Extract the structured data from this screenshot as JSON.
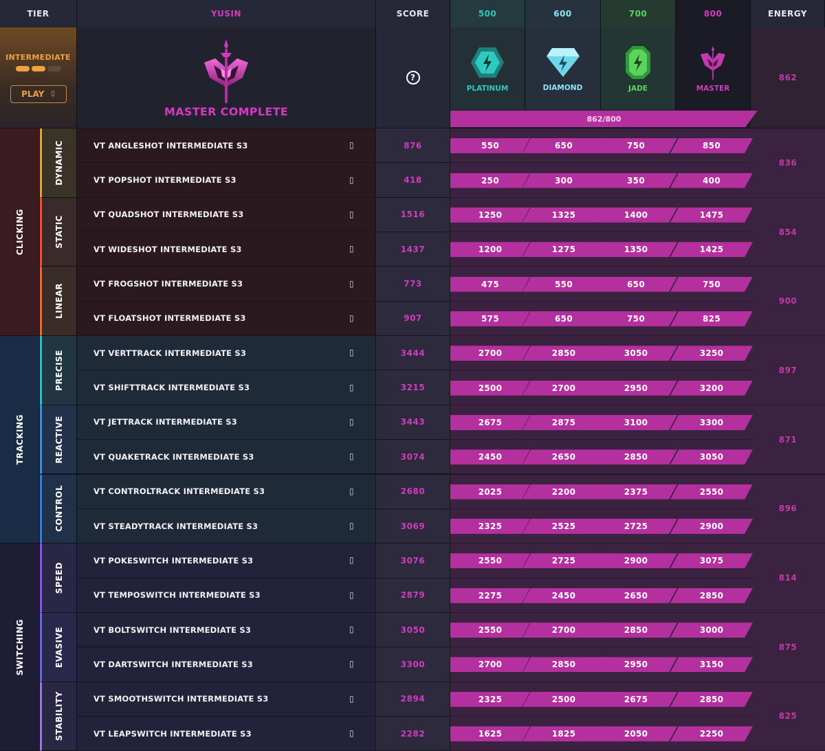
{
  "header": {
    "tier": "TIER",
    "player": "YUSIN",
    "score": "SCORE",
    "rank_columns": [
      "500",
      "600",
      "700",
      "800"
    ],
    "energy": "ENERGY"
  },
  "tier_panel": {
    "label": "INTERMEDIATE",
    "progress_filled": 2,
    "progress_total": 3,
    "play_label": "PLAY",
    "play_icon": "▯"
  },
  "profile": {
    "status": "MASTER COMPLETE"
  },
  "score_help": "?",
  "ranks": [
    {
      "name": "PLATINUM",
      "icon": "platinum-icon",
      "color": "#2fc9bf"
    },
    {
      "name": "DIAMOND",
      "icon": "diamond-icon",
      "color": "#8fe6f5"
    },
    {
      "name": "JADE",
      "icon": "jade-icon",
      "color": "#5cd35c"
    },
    {
      "name": "MASTER",
      "icon": "master-icon",
      "color": "#d23bc0"
    }
  ],
  "energy_total": "862",
  "progress_bar": {
    "text": "862/800",
    "fraction": 1.0
  },
  "categories": [
    {
      "name": "CLICKING",
      "bg": "#3b1b22",
      "text_bg": "#2a1a1f",
      "subcategories": [
        {
          "name": "DYNAMIC",
          "accent": "#d9a441",
          "bg": "#3a3328",
          "energy": "836",
          "scenarios": [
            {
              "name": "VT ANGLESHOT INTERMEDIATE S3",
              "score": "876",
              "thresholds": [
                "550",
                "650",
                "750",
                "850"
              ]
            },
            {
              "name": "VT POPSHOT INTERMEDIATE S3",
              "score": "418",
              "thresholds": [
                "250",
                "300",
                "350",
                "400"
              ]
            }
          ]
        },
        {
          "name": "STATIC",
          "accent": "#e0563f",
          "bg": "#3a2a29",
          "energy": "854",
          "scenarios": [
            {
              "name": "VT QUADSHOT INTERMEDIATE S3",
              "score": "1516",
              "thresholds": [
                "1250",
                "1325",
                "1400",
                "1475"
              ]
            },
            {
              "name": "VT WIDESHOT INTERMEDIATE S3",
              "score": "1437",
              "thresholds": [
                "1200",
                "1275",
                "1350",
                "1425"
              ]
            }
          ]
        },
        {
          "name": "LINEAR",
          "accent": "#e0703a",
          "bg": "#3a2c27",
          "energy": "900",
          "scenarios": [
            {
              "name": "VT FROGSHOT INTERMEDIATE S3",
              "score": "773",
              "thresholds": [
                "475",
                "550",
                "650",
                "750"
              ]
            },
            {
              "name": "VT FLOATSHOT INTERMEDIATE S3",
              "score": "907",
              "thresholds": [
                "575",
                "650",
                "750",
                "825"
              ]
            }
          ]
        }
      ]
    },
    {
      "name": "TRACKING",
      "bg": "#1b2d46",
      "text_bg": "#1f2a38",
      "subcategories": [
        {
          "name": "PRECISE",
          "accent": "#39b9c4",
          "bg": "#223543",
          "energy": "897",
          "scenarios": [
            {
              "name": "VT VERTTRACK INTERMEDIATE S3",
              "score": "3444",
              "thresholds": [
                "2700",
                "2850",
                "3050",
                "3250"
              ]
            },
            {
              "name": "VT SHIFTTRACK INTERMEDIATE S3",
              "score": "3215",
              "thresholds": [
                "2500",
                "2700",
                "2950",
                "3200"
              ]
            }
          ]
        },
        {
          "name": "REACTIVE",
          "accent": "#4a8bd6",
          "bg": "#22324a",
          "energy": "871",
          "scenarios": [
            {
              "name": "VT JETTRACK INTERMEDIATE S3",
              "score": "3443",
              "thresholds": [
                "2675",
                "2875",
                "3100",
                "3300"
              ]
            },
            {
              "name": "VT QUAKETRACK INTERMEDIATE S3",
              "score": "3074",
              "thresholds": [
                "2450",
                "2650",
                "2850",
                "3050"
              ]
            }
          ]
        },
        {
          "name": "CONTROL",
          "accent": "#3f7bd0",
          "bg": "#21314a",
          "energy": "896",
          "scenarios": [
            {
              "name": "VT CONTROLTRACK INTERMEDIATE S3",
              "score": "2680",
              "thresholds": [
                "2025",
                "2200",
                "2375",
                "2550"
              ]
            },
            {
              "name": "VT STEADYTRACK INTERMEDIATE S3",
              "score": "3069",
              "thresholds": [
                "2325",
                "2525",
                "2725",
                "2900"
              ]
            }
          ]
        }
      ]
    },
    {
      "name": "SWITCHING",
      "bg": "#1f1d36",
      "text_bg": "#23223a",
      "subcategories": [
        {
          "name": "SPEED",
          "accent": "#8a5ad6",
          "bg": "#2a2645",
          "energy": "814",
          "scenarios": [
            {
              "name": "VT POKESWITCH INTERMEDIATE S3",
              "score": "3076",
              "thresholds": [
                "2550",
                "2725",
                "2900",
                "3075"
              ]
            },
            {
              "name": "VT TEMPOSWITCH INTERMEDIATE S3",
              "score": "2879",
              "thresholds": [
                "2275",
                "2450",
                "2650",
                "2850"
              ]
            }
          ]
        },
        {
          "name": "EVASIVE",
          "accent": "#6a6ad6",
          "bg": "#27284a",
          "energy": "875",
          "scenarios": [
            {
              "name": "VT BOLTSWITCH INTERMEDIATE S3",
              "score": "3050",
              "thresholds": [
                "2550",
                "2700",
                "2850",
                "3000"
              ]
            },
            {
              "name": "VT DARTSWITCH INTERMEDIATE S3",
              "score": "3300",
              "thresholds": [
                "2700",
                "2850",
                "2950",
                "3150"
              ]
            }
          ]
        },
        {
          "name": "STABILITY",
          "accent": "#9a7ad8",
          "bg": "#2a2745",
          "energy": "825",
          "scenarios": [
            {
              "name": "VT SMOOTHSWITCH INTERMEDIATE S3",
              "score": "2894",
              "thresholds": [
                "2325",
                "2500",
                "2675",
                "2850"
              ]
            },
            {
              "name": "VT LEAPSWITCH INTERMEDIATE S3",
              "score": "2282",
              "thresholds": [
                "1625",
                "1825",
                "2050",
                "2250"
              ]
            }
          ]
        }
      ]
    }
  ]
}
